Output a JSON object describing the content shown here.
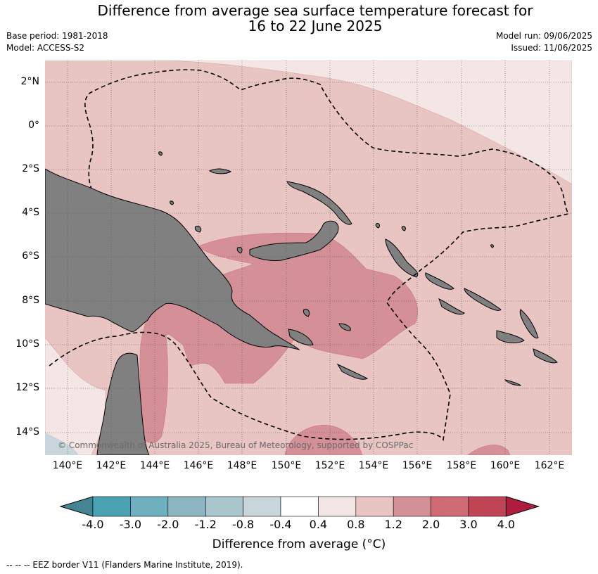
{
  "title_line1": "Difference from average sea surface temperature forecast for",
  "title_line2": "16 to 22 June 2025",
  "base_period": "Base period: 1981-2018",
  "model": "Model: ACCESS-S2",
  "model_run": "Model run: 09/06/2025",
  "issued": "Issued: 11/06/2025",
  "copyright": "© Commonwealth of Australia 2025, Bureau of Meteorology, supported by COSPPac",
  "lat_labels": [
    "2°N",
    "0°",
    "2°S",
    "4°S",
    "6°S",
    "8°S",
    "10°S",
    "12°S",
    "14°S"
  ],
  "lon_labels": [
    "140°E",
    "142°E",
    "144°E",
    "146°E",
    "148°E",
    "150°E",
    "152°E",
    "154°E",
    "156°E",
    "158°E",
    "160°E",
    "162°E"
  ],
  "colorbar": {
    "labels": [
      "-4.0",
      "-3.0",
      "-2.0",
      "-1.2",
      "-0.8",
      "-0.4",
      "0.4",
      "0.8",
      "1.2",
      "2.0",
      "3.0",
      "4.0"
    ],
    "colors": [
      "#458491",
      "#4aa2b3",
      "#6fb0bf",
      "#8db6c2",
      "#a8c6cb",
      "#c8d6db",
      "#ffffff",
      "#f4e6e4",
      "#e8c5c2",
      "#d48f97",
      "#cf6b75",
      "#bf4455",
      "#b01c3d"
    ],
    "title": "Difference from average (°C)"
  },
  "colors": {
    "land": "#808080",
    "band_0_4_0_8": "#f4e6e4",
    "band_0_8_1_2": "#e8c5c2",
    "band_1_2_2_0": "#d48f97",
    "band_cool": "#c8d6db"
  },
  "footer": "--  --  -- EEZ border V11 (Flanders Marine Institute, 2019)."
}
